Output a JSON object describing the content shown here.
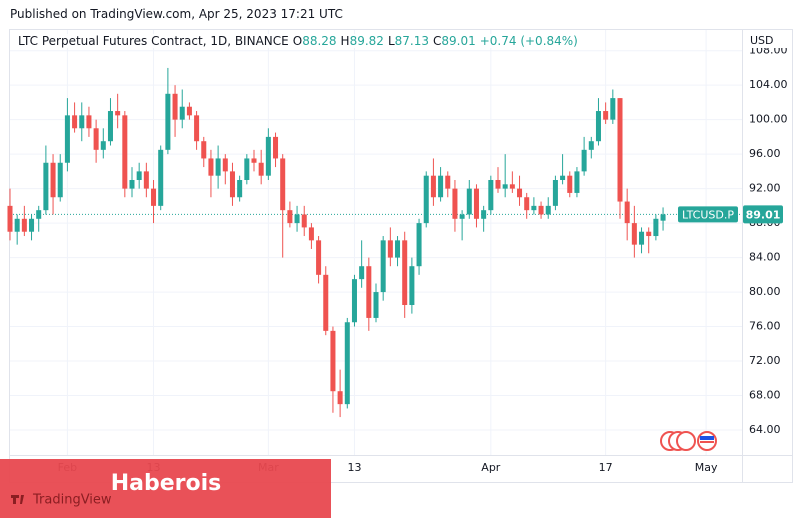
{
  "published": "Published on TradingView.com, Apr 25, 2023 17:21 UTC",
  "header": {
    "symbol": "LTC Perpetual Futures Contract, 1D, BINANCE",
    "ohlc": [
      {
        "label": "O",
        "value": "88.28"
      },
      {
        "label": "H",
        "value": "89.82"
      },
      {
        "label": "L",
        "value": "87.13"
      },
      {
        "label": "C",
        "value": "89.01"
      }
    ],
    "change": "+0.74 (+0.84%)"
  },
  "watermark": "Haberois",
  "logo": "TradingView",
  "chart_data": {
    "type": "candlestick",
    "currency": "USD",
    "up_color": "#26a69a",
    "down_color": "#ef5350",
    "grid": true,
    "x": [
      "01-24",
      "01-25",
      "01-26",
      "01-27",
      "01-28",
      "01-29",
      "01-30",
      "01-31",
      "02-01",
      "02-02",
      "02-03",
      "02-04",
      "02-05",
      "02-06",
      "02-07",
      "02-08",
      "02-09",
      "02-10",
      "02-11",
      "02-12",
      "02-13",
      "02-14",
      "02-15",
      "02-16",
      "02-17",
      "02-18",
      "02-19",
      "02-20",
      "02-21",
      "02-22",
      "02-23",
      "02-24",
      "02-25",
      "02-26",
      "02-27",
      "02-28",
      "03-01",
      "03-02",
      "03-03",
      "03-04",
      "03-05",
      "03-06",
      "03-07",
      "03-08",
      "03-09",
      "03-10",
      "03-11",
      "03-12",
      "03-13",
      "03-14",
      "03-15",
      "03-16",
      "03-17",
      "03-18",
      "03-19",
      "03-20",
      "03-21",
      "03-22",
      "03-23",
      "03-24",
      "03-25",
      "03-26",
      "03-27",
      "03-28",
      "03-29",
      "03-30",
      "03-31",
      "04-01",
      "04-02",
      "04-03",
      "04-04",
      "04-05",
      "04-06",
      "04-07",
      "04-08",
      "04-09",
      "04-10",
      "04-11",
      "04-12",
      "04-13",
      "04-14",
      "04-15",
      "04-16",
      "04-17",
      "04-18",
      "04-19",
      "04-20",
      "04-21",
      "04-22",
      "04-23",
      "04-24",
      "04-25"
    ],
    "open": [
      90,
      87,
      88.5,
      87,
      88.5,
      89.5,
      95,
      91,
      95,
      100.5,
      99,
      100.5,
      99,
      96.5,
      97.5,
      101,
      100.5,
      92,
      93,
      94,
      92,
      90,
      96.5,
      103,
      100,
      101.5,
      100.5,
      97.5,
      95.5,
      93.5,
      95.5,
      94,
      91,
      93,
      95.5,
      95,
      93.5,
      98,
      95.5,
      89.5,
      88,
      89,
      87.5,
      86,
      82,
      75.5,
      68.5,
      67,
      76.5,
      81.5,
      83,
      77,
      80,
      86,
      84,
      86,
      78.5,
      83,
      88,
      93.5,
      91,
      93.5,
      92,
      88.5,
      89,
      92,
      88.5,
      89.5,
      93,
      92,
      92.5,
      92,
      91,
      89.5,
      90,
      89,
      90,
      93,
      93.5,
      91.5,
      94,
      96.5,
      97.5,
      101,
      100,
      102.5,
      90.5,
      88,
      85.5,
      87,
      86.5,
      88.28
    ],
    "high": [
      92,
      89,
      90,
      89,
      90,
      97,
      96,
      96,
      102.5,
      102,
      102,
      101.5,
      100,
      99,
      102.5,
      103,
      101,
      94.5,
      95,
      95,
      93,
      97,
      106,
      104,
      103.5,
      102,
      101,
      98,
      96.5,
      97,
      96,
      95,
      93.5,
      96,
      96.5,
      96.5,
      99,
      98.5,
      96,
      90.5,
      90,
      90,
      88,
      86.5,
      83,
      76,
      71,
      77,
      82,
      86,
      84,
      81,
      86.5,
      87.5,
      86.5,
      87,
      84,
      88.5,
      94,
      95.5,
      94.5,
      94,
      93,
      89.5,
      93,
      92.5,
      90,
      93.5,
      94.5,
      96,
      94,
      93.5,
      91.5,
      91,
      90.5,
      91,
      93.5,
      96,
      94,
      94.5,
      98,
      98,
      102.5,
      102,
      103.5,
      102.5,
      92,
      90,
      87.5,
      87.5,
      89,
      89.82
    ],
    "low": [
      86,
      85.5,
      86.5,
      86,
      87,
      89,
      89,
      90.5,
      94,
      98.5,
      97.5,
      98,
      95,
      95.5,
      97,
      99,
      91,
      91,
      92,
      91,
      88,
      89.5,
      96,
      98,
      99,
      100,
      96.5,
      94.5,
      91,
      92,
      92.5,
      90,
      90.5,
      92.5,
      94,
      92.5,
      93,
      94.5,
      84,
      87.5,
      87,
      86.5,
      85,
      81,
      75,
      66,
      65.5,
      66.5,
      76,
      80.5,
      75.5,
      76.5,
      79,
      83,
      83,
      77,
      77.5,
      82,
      87.5,
      90,
      90.5,
      91,
      87,
      86,
      88.5,
      87.5,
      87,
      89,
      91.5,
      91,
      91.5,
      90,
      88.5,
      89,
      88.5,
      88.5,
      89.5,
      92.5,
      91,
      91,
      93.5,
      95.5,
      97,
      99.5,
      99.5,
      88.5,
      86,
      84,
      84.5,
      84.5,
      86,
      87.13
    ],
    "close": [
      87,
      88.5,
      87,
      88.5,
      89.5,
      95,
      91,
      95,
      100.5,
      99,
      100.5,
      99,
      96.5,
      97.5,
      101,
      100.5,
      92,
      93,
      94,
      92,
      90,
      96.5,
      103,
      100,
      101.5,
      100.5,
      97.5,
      95.5,
      93.5,
      95.5,
      94,
      91,
      93,
      95.5,
      95,
      93.5,
      98,
      95.5,
      89.5,
      88,
      89,
      87.5,
      86,
      82,
      75.5,
      68.5,
      67,
      76.5,
      81.5,
      83,
      77,
      80,
      86,
      84,
      86,
      78.5,
      83,
      88,
      93.5,
      91,
      93.5,
      92,
      88.5,
      89,
      92,
      88.5,
      89.5,
      93,
      92,
      92.5,
      92,
      91,
      89.5,
      90,
      89,
      90,
      93,
      93.5,
      91.5,
      94,
      96.5,
      97.5,
      101,
      100,
      102.5,
      90.5,
      88,
      85.5,
      87,
      86.5,
      88.5,
      89.01
    ],
    "last_price": {
      "symbol": "LTCUSD.P",
      "value": 89.01
    },
    "xlim": [
      "01-24",
      "05-06"
    ],
    "xticks": [
      {
        "value": "02-01",
        "label": "Feb"
      },
      {
        "value": "02-13",
        "label": "13"
      },
      {
        "value": "03-01",
        "label": "Mar"
      },
      {
        "value": "03-13",
        "label": "13"
      },
      {
        "value": "04-01",
        "label": "Apr"
      },
      {
        "value": "04-17",
        "label": "17"
      },
      {
        "value": "05-01",
        "label": "May"
      }
    ],
    "ylim": [
      61.1,
      110.4
    ],
    "yticks": [
      {
        "value": 64,
        "label": "64.00"
      },
      {
        "value": 68,
        "label": "68.00"
      },
      {
        "value": 72,
        "label": "72.00"
      },
      {
        "value": 76,
        "label": "76.00"
      },
      {
        "value": 80,
        "label": "80.00"
      },
      {
        "value": 84,
        "label": "84.00"
      },
      {
        "value": 88,
        "label": "88.00"
      },
      {
        "value": 92,
        "label": "92.00"
      },
      {
        "value": 96,
        "label": "96.00"
      },
      {
        "value": 100,
        "label": "100.00"
      },
      {
        "value": 104,
        "label": "104.00"
      },
      {
        "value": 108,
        "label": "108.00"
      }
    ]
  }
}
